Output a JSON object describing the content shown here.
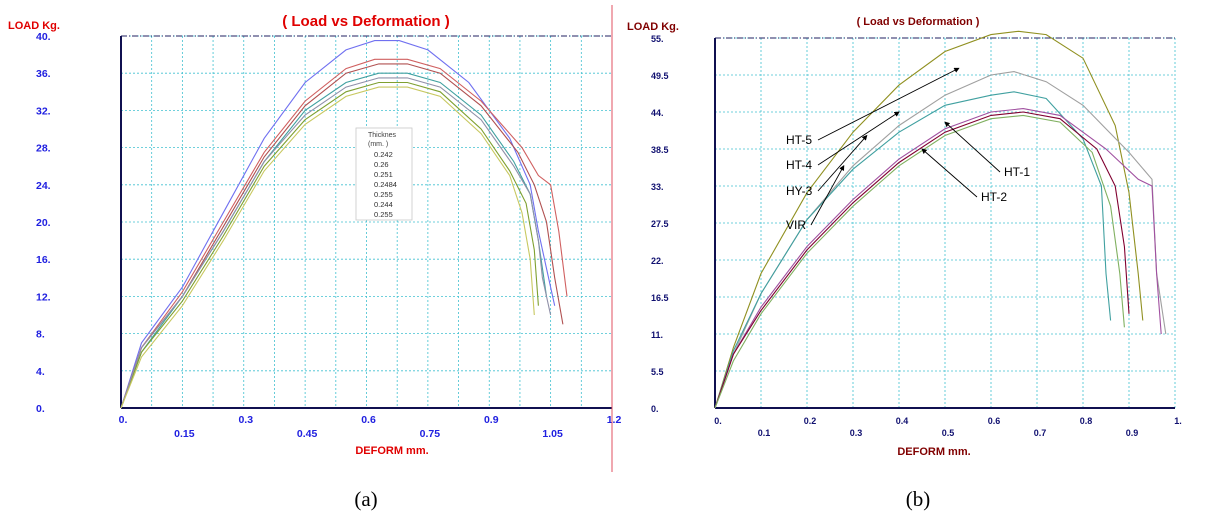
{
  "captions": [
    "(a)",
    "(b)"
  ],
  "chart_data": [
    {
      "type": "line",
      "title": "( Load vs Deformation )",
      "xlabel": "DEFORM mm.",
      "ylabel": "LOAD Kg.",
      "xlim": [
        0,
        1.2
      ],
      "ylim": [
        0,
        40
      ],
      "x_ticks": [
        "0.",
        "0.15",
        "0.3",
        "0.45",
        "0.6",
        "0.75",
        "0.9",
        "1.05",
        "1.2"
      ],
      "y_ticks": [
        "0.",
        "4.",
        "8.",
        "12.",
        "16.",
        "20.",
        "24.",
        "28.",
        "32.",
        "36.",
        "40."
      ],
      "grid": true,
      "legend": {
        "title_lines": [
          "Thicknes",
          "(mm. )"
        ],
        "placement": "center",
        "entries": [
          "0.242",
          "0.26",
          "0.251",
          "0.2484",
          "0.255",
          "0.244",
          "0.255"
        ]
      },
      "series": [
        {
          "name": "0.242",
          "color": "#7070f0",
          "x": [
            0,
            0.05,
            0.15,
            0.25,
            0.35,
            0.45,
            0.55,
            0.62,
            0.68,
            0.75,
            0.85,
            0.95,
            1.0,
            1.02,
            1.04,
            1.06
          ],
          "y": [
            0,
            7,
            13,
            21,
            29,
            35,
            38.5,
            39.5,
            39.5,
            38.5,
            35,
            29,
            24,
            19,
            15,
            11
          ]
        },
        {
          "name": "0.26",
          "color": "#d06060",
          "x": [
            0,
            0.05,
            0.15,
            0.25,
            0.35,
            0.45,
            0.55,
            0.62,
            0.7,
            0.78,
            0.88,
            0.98,
            1.02,
            1.05,
            1.07,
            1.09
          ],
          "y": [
            0,
            6.5,
            12.5,
            20,
            27.5,
            33,
            36.5,
            37.5,
            37.5,
            36.5,
            33,
            28,
            25,
            24,
            19,
            12
          ]
        },
        {
          "name": "0.251",
          "color": "#b05050",
          "x": [
            0,
            0.05,
            0.15,
            0.25,
            0.35,
            0.45,
            0.55,
            0.63,
            0.7,
            0.78,
            0.88,
            0.97,
            1.01,
            1.04,
            1.06,
            1.08
          ],
          "y": [
            0,
            6.5,
            12,
            19.5,
            27,
            32.5,
            36,
            37,
            37,
            36,
            32.5,
            27.5,
            24,
            20,
            14,
            9
          ]
        },
        {
          "name": "0.2484",
          "color": "#40a0a0",
          "x": [
            0,
            0.05,
            0.15,
            0.25,
            0.35,
            0.45,
            0.55,
            0.63,
            0.7,
            0.78,
            0.88,
            0.96,
            1.0,
            1.02,
            1.04
          ],
          "y": [
            0,
            6,
            12,
            19,
            26.5,
            32,
            35,
            36,
            36,
            35,
            31.5,
            26.5,
            23,
            18,
            12
          ]
        },
        {
          "name": "0.255",
          "color": "#7fa030",
          "x": [
            0,
            0.05,
            0.15,
            0.25,
            0.35,
            0.45,
            0.55,
            0.63,
            0.7,
            0.78,
            0.88,
            0.95,
            0.99,
            1.01,
            1.02
          ],
          "y": [
            0,
            6,
            11.5,
            18.5,
            26,
            31,
            34,
            35,
            35,
            34,
            30,
            25.5,
            22,
            17,
            11
          ]
        },
        {
          "name": "0.244",
          "color": "#9090a8",
          "x": [
            0,
            0.05,
            0.15,
            0.25,
            0.35,
            0.45,
            0.55,
            0.63,
            0.7,
            0.78,
            0.88,
            0.96,
            1.0,
            1.02,
            1.03,
            1.05
          ],
          "y": [
            0,
            6.5,
            12,
            19,
            26.5,
            31.5,
            34.5,
            35.5,
            35.5,
            34.5,
            31,
            26,
            23,
            18,
            14,
            10
          ]
        },
        {
          "name": "0.255",
          "color": "#c8c860",
          "x": [
            0,
            0.05,
            0.15,
            0.25,
            0.35,
            0.45,
            0.55,
            0.63,
            0.7,
            0.78,
            0.88,
            0.95,
            0.98,
            1.0,
            1.01
          ],
          "y": [
            0,
            5.5,
            11,
            18,
            25.5,
            30.5,
            33.5,
            34.5,
            34.5,
            33.5,
            29.5,
            25,
            21,
            16,
            10
          ]
        }
      ]
    },
    {
      "type": "line",
      "title": "( Load vs Deformation )",
      "xlabel": "DEFORM mm.",
      "ylabel": "LOAD  Kg.",
      "xlim": [
        0,
        1.0
      ],
      "ylim": [
        0,
        55
      ],
      "x_ticks": [
        "0.",
        "0.1",
        "0.2",
        "0.3",
        "0.4",
        "0.5",
        "0.6",
        "0.7",
        "0.8",
        "0.9",
        "1."
      ],
      "y_ticks": [
        "0.",
        "5.5",
        "11.",
        "16.5",
        "22.",
        "27.5",
        "33.",
        "38.5",
        "44.",
        "49.5",
        "55."
      ],
      "grid": true,
      "series": [
        {
          "name": "HT-5",
          "color": "#909020",
          "x": [
            0,
            0.04,
            0.1,
            0.2,
            0.3,
            0.4,
            0.5,
            0.6,
            0.66,
            0.72,
            0.8,
            0.87,
            0.9,
            0.92,
            0.93
          ],
          "y": [
            0,
            9,
            20,
            32,
            41,
            48,
            53,
            55.5,
            56,
            55.5,
            52,
            42,
            32,
            20,
            13
          ]
        },
        {
          "name": "HT-4",
          "color": "#a0a0a0",
          "x": [
            0,
            0.04,
            0.1,
            0.2,
            0.3,
            0.4,
            0.5,
            0.6,
            0.65,
            0.72,
            0.8,
            0.9,
            0.95,
            0.96,
            0.98
          ],
          "y": [
            0,
            8,
            17,
            28,
            36,
            42,
            46.5,
            49.5,
            50,
            48.5,
            45,
            38,
            34,
            20,
            11
          ]
        },
        {
          "name": "HY-3",
          "color": "#40a0a0",
          "x": [
            0,
            0.04,
            0.1,
            0.2,
            0.3,
            0.4,
            0.5,
            0.6,
            0.65,
            0.72,
            0.8,
            0.84,
            0.85,
            0.86
          ],
          "y": [
            0,
            8.5,
            17,
            28,
            35.5,
            41,
            45,
            46.5,
            47,
            46,
            40,
            33,
            20,
            13
          ]
        },
        {
          "name": "HT-1",
          "color": "#a050a0",
          "x": [
            0,
            0.04,
            0.1,
            0.2,
            0.3,
            0.4,
            0.5,
            0.6,
            0.67,
            0.75,
            0.85,
            0.92,
            0.95,
            0.96,
            0.97
          ],
          "y": [
            0,
            8,
            15,
            24,
            31,
            37,
            41.5,
            44,
            44.5,
            43.5,
            38.5,
            34,
            33,
            20,
            11
          ]
        },
        {
          "name": "HT-2",
          "color": "#800030",
          "x": [
            0,
            0.04,
            0.1,
            0.2,
            0.3,
            0.4,
            0.5,
            0.6,
            0.67,
            0.75,
            0.83,
            0.87,
            0.89,
            0.9
          ],
          "y": [
            0,
            8,
            14.5,
            23.5,
            30.5,
            36.5,
            41,
            43.5,
            44,
            43,
            38.5,
            33,
            24,
            14
          ]
        },
        {
          "name": "VIR",
          "color": "#80b060",
          "x": [
            0,
            0.04,
            0.1,
            0.2,
            0.3,
            0.4,
            0.5,
            0.6,
            0.67,
            0.75,
            0.82,
            0.86,
            0.88,
            0.89
          ],
          "y": [
            0,
            7,
            14,
            23,
            30,
            36,
            40.5,
            43,
            43.5,
            42.5,
            38,
            30,
            20,
            12
          ]
        }
      ],
      "annotations": [
        {
          "text": "HT-5",
          "x": 0.53,
          "y": 50.5
        },
        {
          "text": "HT-4",
          "x": 0.4,
          "y": 44
        },
        {
          "text": "HY-3",
          "x": 0.33,
          "y": 40.5
        },
        {
          "text": "VIR",
          "x": 0.28,
          "y": 36
        },
        {
          "text": "HT-1",
          "x": 0.5,
          "y": 42.5
        },
        {
          "text": "HT-2",
          "x": 0.45,
          "y": 38.5
        }
      ]
    }
  ]
}
